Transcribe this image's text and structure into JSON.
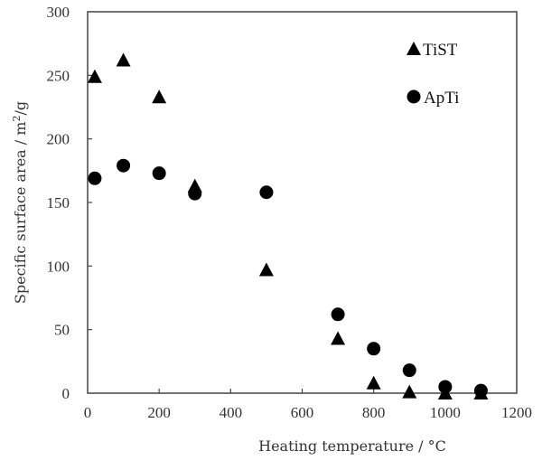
{
  "chart_data": {
    "type": "scatter",
    "title": "",
    "xlabel": "Heating temperature / °C",
    "ylabel": "Specific surface area / m²/g",
    "xlim": [
      0,
      1200
    ],
    "ylim": [
      0,
      300
    ],
    "xticks": [
      0,
      200,
      400,
      600,
      800,
      1000,
      1200
    ],
    "yticks": [
      0,
      50,
      100,
      150,
      200,
      250,
      300
    ],
    "grid": false,
    "legend_position": "upper right (inside)",
    "series": [
      {
        "name": "TiST",
        "marker": "triangle",
        "color": "#000000",
        "points": [
          [
            20,
            249
          ],
          [
            100,
            262
          ],
          [
            200,
            233
          ],
          [
            300,
            163
          ],
          [
            500,
            97
          ],
          [
            700,
            43
          ],
          [
            800,
            8
          ],
          [
            900,
            1
          ],
          [
            1000,
            0
          ],
          [
            1100,
            0
          ]
        ]
      },
      {
        "name": "ApTi",
        "marker": "circle",
        "color": "#000000",
        "points": [
          [
            20,
            169
          ],
          [
            100,
            179
          ],
          [
            200,
            173
          ],
          [
            300,
            157
          ],
          [
            500,
            158
          ],
          [
            700,
            62
          ],
          [
            800,
            35
          ],
          [
            900,
            18
          ],
          [
            1000,
            5
          ],
          [
            1100,
            2
          ]
        ]
      }
    ]
  },
  "axis": {
    "xlabel_main": "Heating temperature / ",
    "xlabel_unit": "°C",
    "ylabel_main": "Specific surface area / m",
    "ylabel_sup": "2",
    "ylabel_tail": "/g"
  },
  "legend": [
    {
      "label": "TiST",
      "marker": "triangle-icon"
    },
    {
      "label": "ApTi",
      "marker": "circle-icon"
    }
  ]
}
